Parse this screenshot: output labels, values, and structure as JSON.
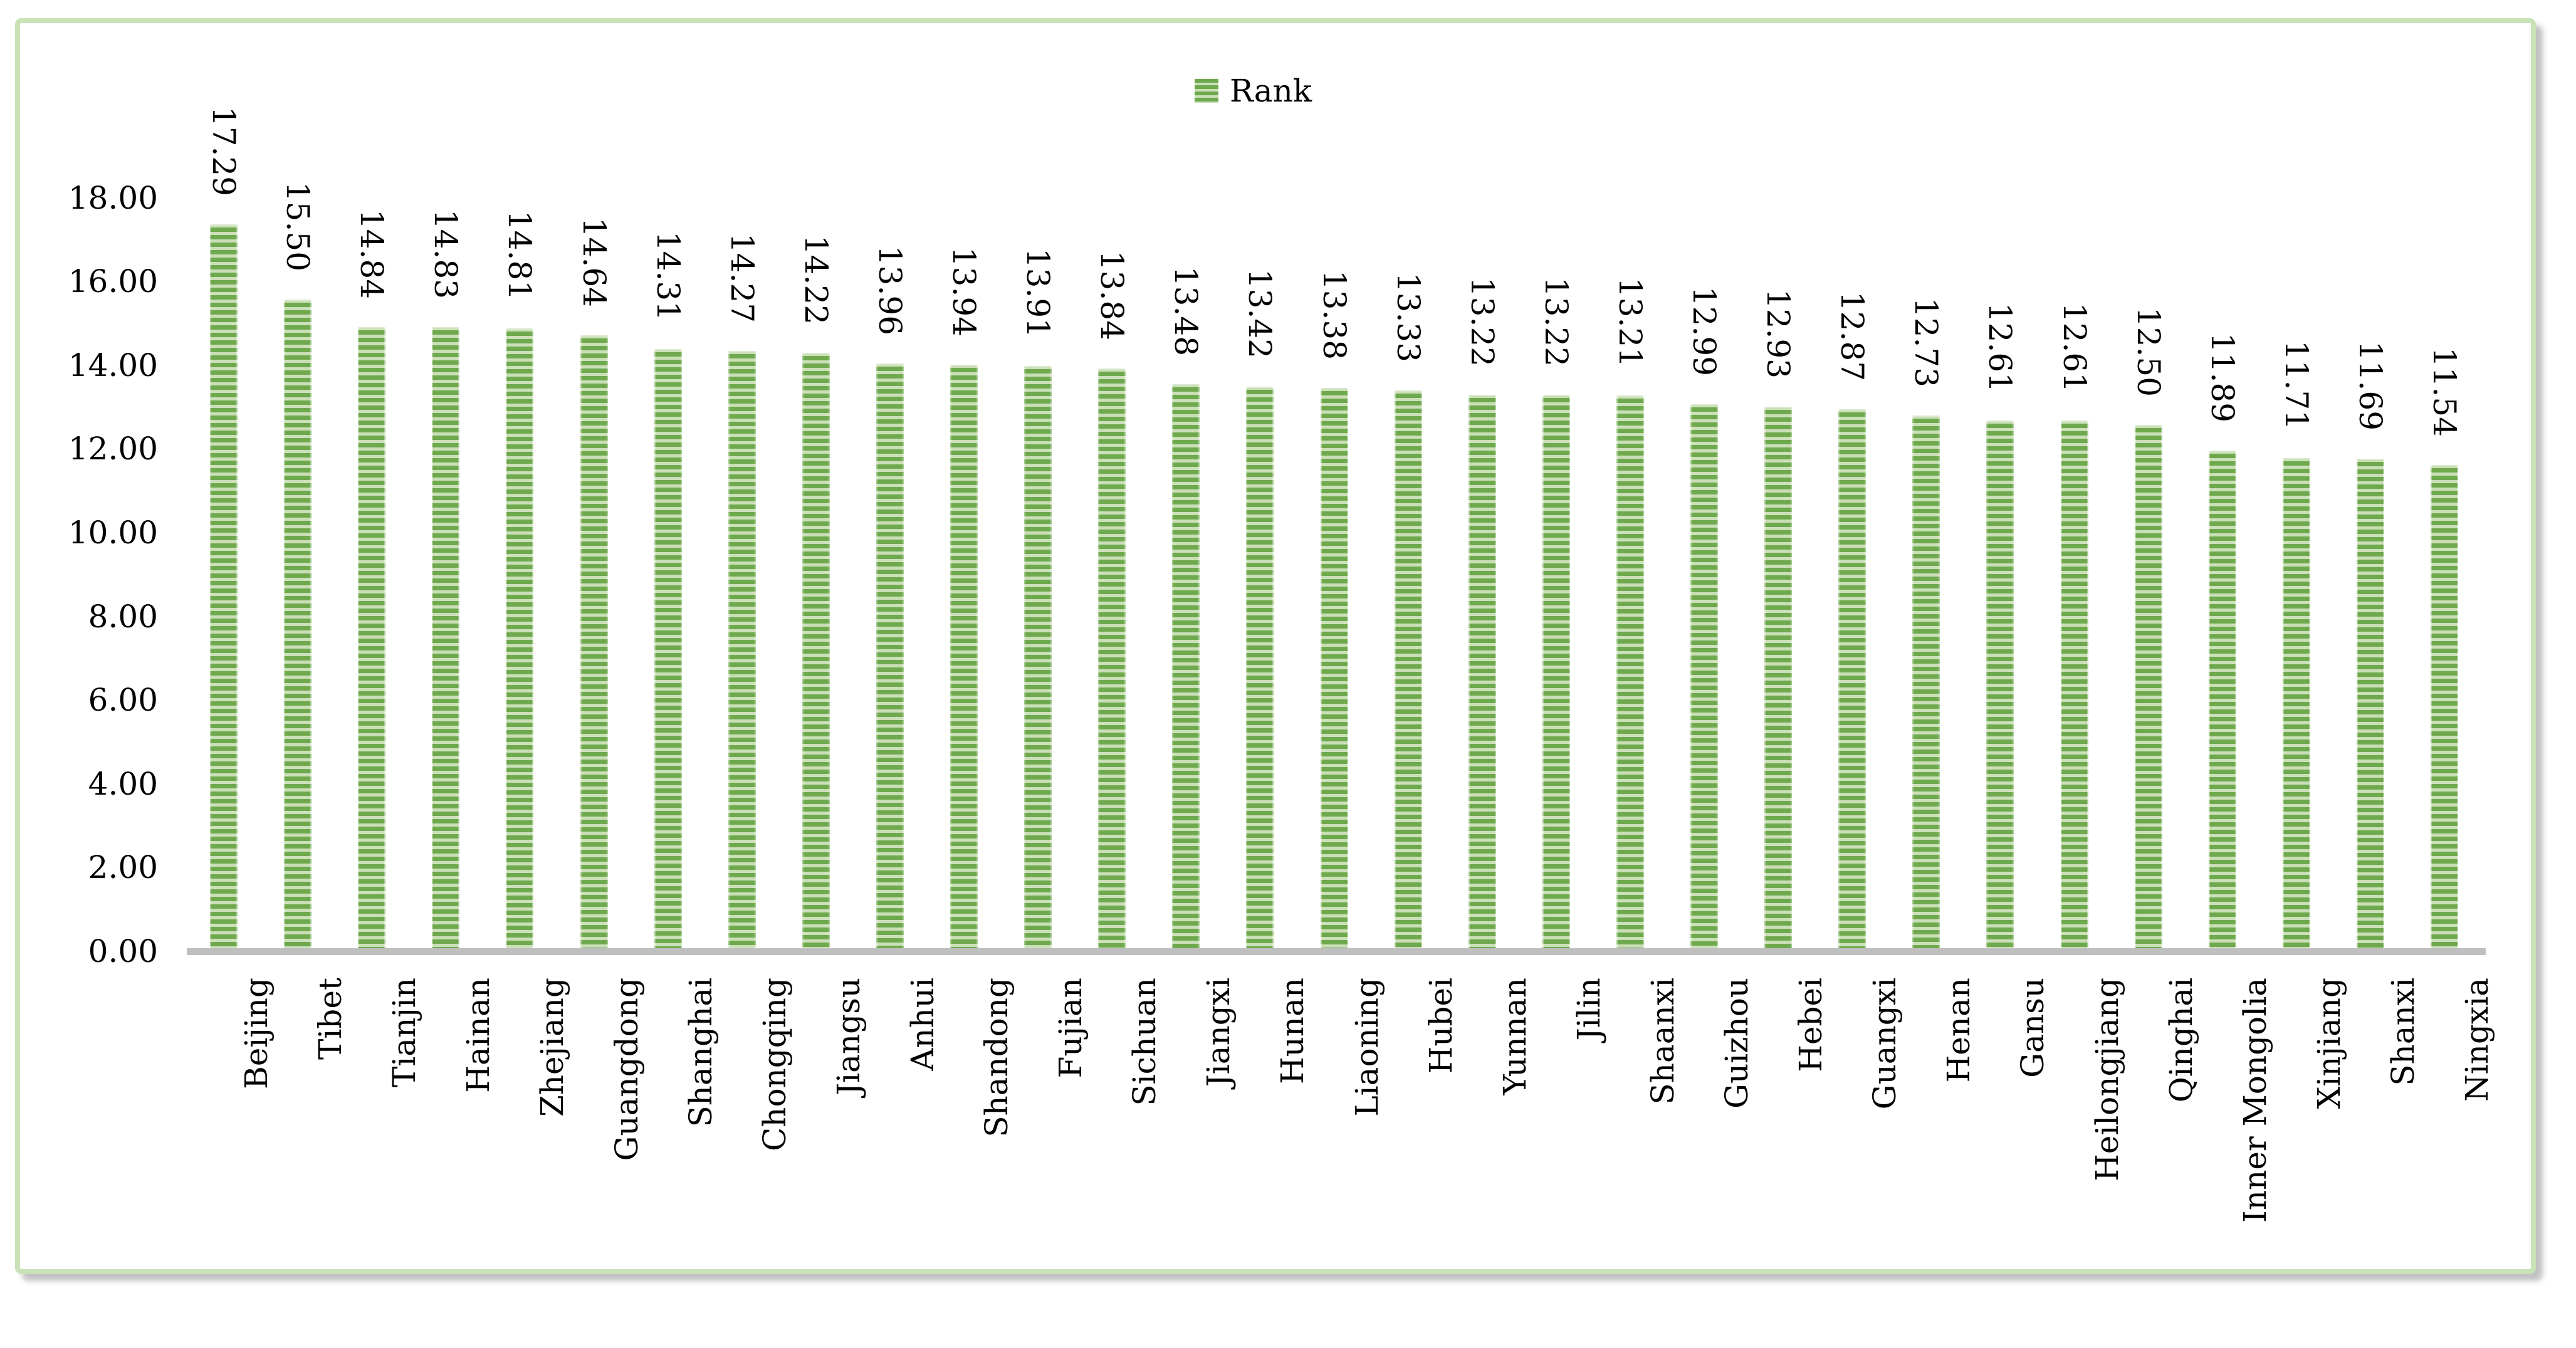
{
  "legend": {
    "label": "Rank"
  },
  "y_axis": {
    "tick_labels": [
      "18.00",
      "16.00",
      "14.00",
      "12.00",
      "10.00",
      "8.00",
      "6.00",
      "4.00",
      "2.00",
      "0.00"
    ]
  },
  "chart_data": {
    "type": "bar",
    "title": "",
    "xlabel": "",
    "ylabel": "",
    "legend_entries": [
      "Rank"
    ],
    "legend_position": "top-center",
    "grid": false,
    "ylim": [
      0,
      18
    ],
    "ytick_step": 2,
    "value_label_rotation": "90deg-reading-down",
    "category_label_rotation": "90deg-reading-up",
    "categories": [
      "Beijing",
      "Tibet",
      "Tianjin",
      "Hainan",
      "Zhejiang",
      "Guangdong",
      "Shanghai",
      "Chongqing",
      "Jiangsu",
      "Anhui",
      "Shandong",
      "Fujian",
      "Sichuan",
      "Jiangxi",
      "Hunan",
      "Liaoning",
      "Hubei",
      "Yunnan",
      "Jilin",
      "Shaanxi",
      "Guizhou",
      "Hebei",
      "Guangxi",
      "Henan",
      "Gansu",
      "Heilongjiang",
      "Qinghai",
      "Inner Mongolia",
      "Xinjiang",
      "Shanxi",
      "Ningxia"
    ],
    "values": [
      17.29,
      15.5,
      14.84,
      14.83,
      14.81,
      14.64,
      14.31,
      14.27,
      14.22,
      13.96,
      13.94,
      13.91,
      13.84,
      13.48,
      13.42,
      13.38,
      13.33,
      13.22,
      13.22,
      13.21,
      12.99,
      12.93,
      12.87,
      12.73,
      12.61,
      12.61,
      12.5,
      11.89,
      11.71,
      11.69,
      11.54
    ]
  },
  "colors": {
    "bar_stripe_dark": "#6fa94e",
    "bar_stripe_light": "#cbe0b8",
    "frame_border": "#c9e2b7",
    "axis_line": "#bfbfbf",
    "text": "#000000",
    "background": "#ffffff"
  }
}
